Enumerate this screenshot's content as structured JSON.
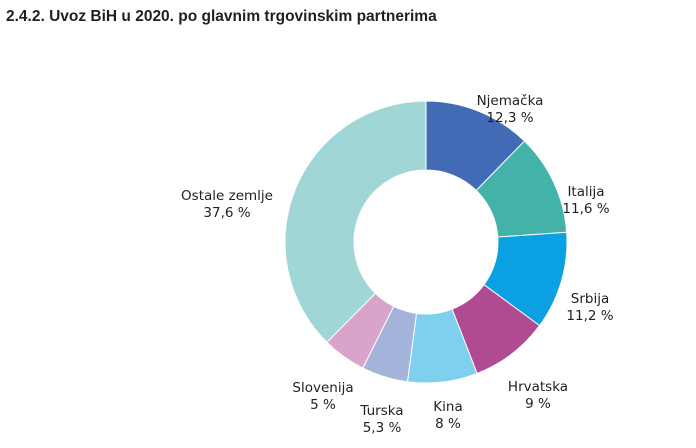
{
  "header": {
    "title": "2.4.2. Uvoz BiH u 2020. po glavnim trgovinskim partnerima"
  },
  "chart_data": {
    "type": "pie",
    "variant": "donut",
    "title": "2.4.2. Uvoz BiH u 2020. po glavnim trgovinskim partnerima",
    "categories": [
      "Njemačka",
      "Italija",
      "Srbija",
      "Hrvatska",
      "Kina",
      "Turska",
      "Slovenija",
      "Ostale zemlje"
    ],
    "values": [
      12.3,
      11.6,
      11.2,
      9,
      8,
      5.3,
      5,
      37.6
    ],
    "value_labels": [
      "12,3 %",
      "11,6 %",
      "11,2 %",
      "9 %",
      "8 %",
      "5,3 %",
      "5 %",
      "37,6 %"
    ],
    "colors": [
      "#436bb5",
      "#43b2a8",
      "#0aa0e2",
      "#b04a92",
      "#7fd0ef",
      "#a3b3da",
      "#d9a4cc",
      "#a1d6d6"
    ],
    "start": "12 o'clock",
    "direction": "clockwise",
    "legend": "none"
  }
}
